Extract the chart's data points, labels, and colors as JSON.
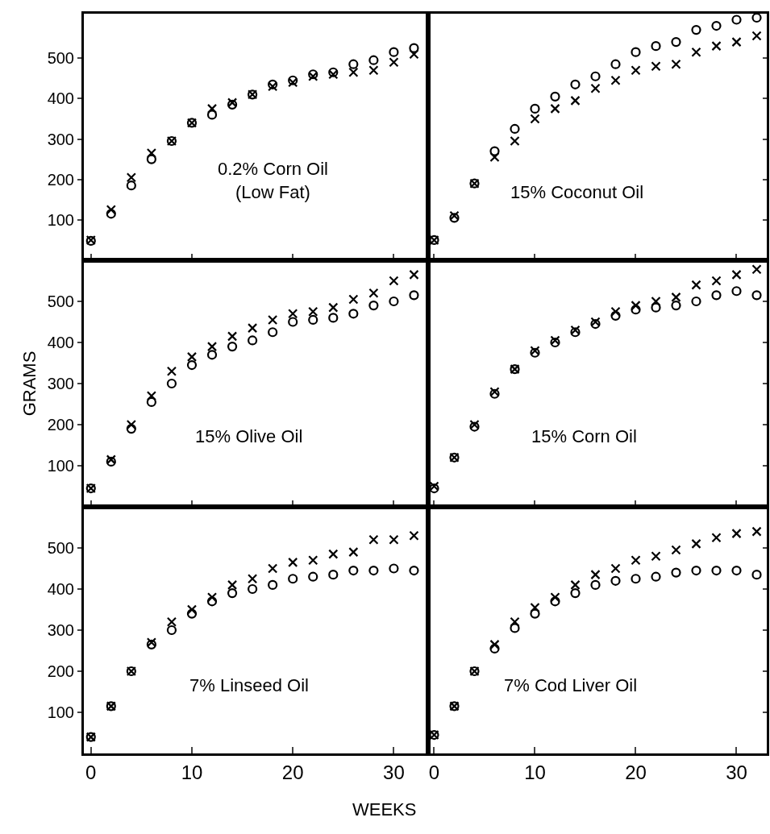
{
  "chart_data": [
    {
      "type": "scatter",
      "annotations": [
        "0.2% Corn Oil\n(Low Fat)"
      ],
      "x": [
        0,
        2,
        4,
        6,
        8,
        10,
        12,
        14,
        16,
        18,
        20,
        22,
        24,
        26,
        28,
        30,
        32
      ],
      "xlim": [
        -0.7,
        33.4
      ],
      "xticks": [
        0,
        10,
        20,
        30
      ],
      "ylim": [
        0,
        610
      ],
      "yticks": [
        100,
        200,
        300,
        400,
        500
      ],
      "tick_labels": "y",
      "grid": false,
      "series": [
        {
          "color": "#000000",
          "marker": "cross",
          "values": [
            50,
            125,
            205,
            265,
            295,
            340,
            375,
            390,
            410,
            430,
            440,
            455,
            460,
            465,
            470,
            490,
            510
          ]
        },
        {
          "color": "#000000",
          "marker": "circle",
          "values": [
            48,
            115,
            185,
            250,
            295,
            340,
            360,
            385,
            410,
            435,
            445,
            460,
            465,
            485,
            495,
            515,
            525
          ]
        }
      ]
    },
    {
      "type": "scatter",
      "annotations": [
        "15% Coconut Oil"
      ],
      "x": [
        0,
        2,
        4,
        6,
        8,
        10,
        12,
        14,
        16,
        18,
        20,
        22,
        24,
        26,
        28,
        30,
        32
      ],
      "xlim": [
        -0.6,
        33.0
      ],
      "xticks": [
        0,
        10,
        20,
        30
      ],
      "ylim": [
        0,
        610
      ],
      "yticks": [
        100,
        200,
        300,
        400,
        500
      ],
      "tick_labels": false,
      "grid": false,
      "series": [
        {
          "color": "#000000",
          "marker": "circle",
          "values": [
            50,
            105,
            190,
            270,
            325,
            375,
            405,
            435,
            455,
            485,
            515,
            530,
            540,
            570,
            580,
            595,
            600
          ]
        },
        {
          "color": "#000000",
          "marker": "cross",
          "values": [
            50,
            110,
            190,
            255,
            295,
            350,
            375,
            395,
            425,
            445,
            470,
            480,
            485,
            515,
            530,
            540,
            555
          ]
        }
      ]
    },
    {
      "type": "scatter",
      "ylabel": "GRAMS",
      "annotations": [
        "15% Olive Oil"
      ],
      "x": [
        0,
        2,
        4,
        6,
        8,
        10,
        12,
        14,
        16,
        18,
        20,
        22,
        24,
        26,
        28,
        30,
        32
      ],
      "xlim": [
        -0.7,
        33.4
      ],
      "xticks": [
        0,
        10,
        20,
        30
      ],
      "ylim": [
        0,
        600
      ],
      "yticks": [
        100,
        200,
        300,
        400,
        500
      ],
      "tick_labels": "y",
      "grid": false,
      "series": [
        {
          "color": "#000000",
          "marker": "cross",
          "values": [
            45,
            115,
            200,
            270,
            330,
            365,
            390,
            415,
            435,
            455,
            470,
            475,
            485,
            505,
            520,
            550,
            565
          ]
        },
        {
          "color": "#000000",
          "marker": "circle",
          "values": [
            45,
            110,
            190,
            255,
            300,
            345,
            370,
            390,
            405,
            425,
            450,
            455,
            460,
            470,
            490,
            500,
            515
          ]
        }
      ]
    },
    {
      "type": "scatter",
      "annotations": [
        "15% Corn Oil"
      ],
      "x": [
        0,
        2,
        4,
        6,
        8,
        10,
        12,
        14,
        16,
        18,
        20,
        22,
        24,
        26,
        28,
        30,
        32
      ],
      "xlim": [
        -0.6,
        33.0
      ],
      "xticks": [
        0,
        10,
        20,
        30
      ],
      "ylim": [
        0,
        600
      ],
      "yticks": [
        100,
        200,
        300,
        400,
        500
      ],
      "tick_labels": false,
      "grid": false,
      "series": [
        {
          "color": "#000000",
          "marker": "cross",
          "values": [
            50,
            120,
            200,
            280,
            335,
            380,
            405,
            430,
            450,
            475,
            490,
            500,
            510,
            540,
            550,
            565,
            578
          ]
        },
        {
          "color": "#000000",
          "marker": "circle",
          "values": [
            45,
            120,
            195,
            275,
            335,
            375,
            400,
            425,
            445,
            465,
            480,
            485,
            490,
            500,
            515,
            525,
            515
          ]
        }
      ]
    },
    {
      "type": "scatter",
      "annotations": [
        "7% Linseed Oil"
      ],
      "x": [
        0,
        2,
        4,
        6,
        8,
        10,
        12,
        14,
        16,
        18,
        20,
        22,
        24,
        26,
        28,
        30,
        32
      ],
      "xlim": [
        -0.7,
        33.4
      ],
      "xticks": [
        0,
        10,
        20,
        30
      ],
      "ylim": [
        0,
        600
      ],
      "yticks": [
        100,
        200,
        300,
        400,
        500
      ],
      "grid": false,
      "series": [
        {
          "color": "#000000",
          "marker": "cross",
          "values": [
            40,
            115,
            200,
            270,
            320,
            350,
            380,
            410,
            425,
            450,
            465,
            470,
            485,
            490,
            520,
            520,
            530
          ]
        },
        {
          "color": "#000000",
          "marker": "circle",
          "values": [
            40,
            115,
            200,
            265,
            300,
            340,
            370,
            390,
            400,
            410,
            425,
            430,
            435,
            445,
            445,
            450,
            445
          ]
        }
      ]
    },
    {
      "type": "scatter",
      "xlabel": "WEEKS",
      "annotations": [
        "7% Cod Liver Oil"
      ],
      "x": [
        0,
        2,
        4,
        6,
        8,
        10,
        12,
        14,
        16,
        18,
        20,
        22,
        24,
        26,
        28,
        30,
        32
      ],
      "xlim": [
        -0.6,
        33.0
      ],
      "xticks": [
        0,
        10,
        20,
        30
      ],
      "ylim": [
        0,
        600
      ],
      "yticks": [
        100,
        200,
        300,
        400,
        500
      ],
      "tick_labels": "x",
      "grid": false,
      "series": [
        {
          "color": "#000000",
          "marker": "circle",
          "values": [
            45,
            115,
            200,
            255,
            305,
            340,
            370,
            390,
            410,
            420,
            425,
            430,
            440,
            445,
            445,
            445,
            435
          ]
        },
        {
          "color": "#000000",
          "marker": "cross",
          "values": [
            45,
            115,
            200,
            265,
            320,
            355,
            380,
            410,
            435,
            450,
            470,
            480,
            495,
            510,
            525,
            535,
            540
          ]
        }
      ]
    }
  ]
}
